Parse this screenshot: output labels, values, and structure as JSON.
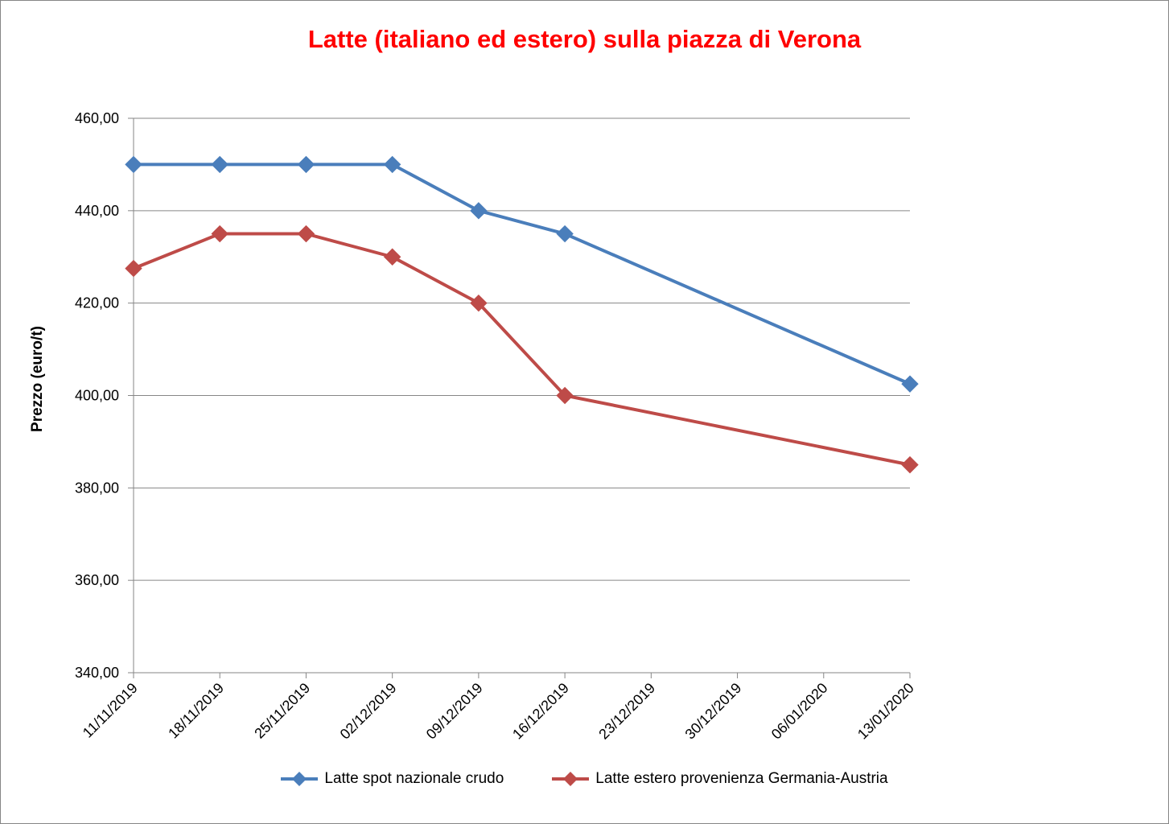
{
  "chart_data": {
    "type": "line",
    "title": "Latte (italiano ed estero) sulla piazza di Verona",
    "xlabel": "",
    "ylabel": "Prezzo (euro/t)",
    "categories": [
      "11/11/2019",
      "18/11/2019",
      "25/11/2019",
      "02/12/2019",
      "09/12/2019",
      "16/12/2019",
      "23/12/2019",
      "30/12/2019",
      "06/01/2020",
      "13/01/2020"
    ],
    "yticks": [
      "340,00",
      "360,00",
      "380,00",
      "400,00",
      "420,00",
      "440,00",
      "460,00"
    ],
    "ylim": [
      340,
      460
    ],
    "grid": true,
    "legend_position": "bottom",
    "series": [
      {
        "name": "Latte spot nazionale crudo",
        "color": "#4a7ebb",
        "values": [
          450,
          450,
          450,
          450,
          440,
          435,
          null,
          null,
          null,
          402.5
        ]
      },
      {
        "name": "Latte estero provenienza Germania-Austria",
        "color": "#be4b48",
        "values": [
          427.5,
          435,
          435,
          430,
          420,
          400,
          null,
          null,
          null,
          385
        ]
      }
    ]
  }
}
